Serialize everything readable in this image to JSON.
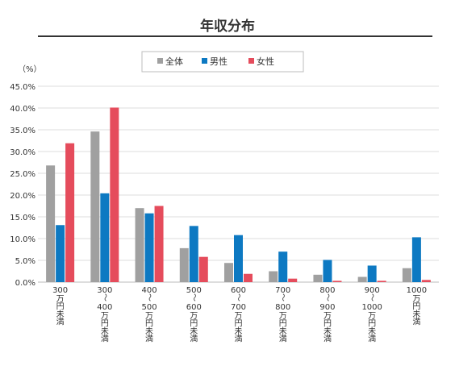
{
  "title": "年収分布",
  "chart_data": {
    "type": "bar",
    "ylabel": "（%）",
    "ylim": [
      0,
      45
    ],
    "yticks": [
      "0.0%",
      "5.0%",
      "10.0%",
      "15.0%",
      "20.0%",
      "25.0%",
      "30.0%",
      "35.0%",
      "40.0%",
      "45.0%"
    ],
    "grid": true,
    "legend_position": "top",
    "categories": [
      [
        "300",
        "万円未満"
      ],
      [
        "300",
        "～",
        "400",
        "万円未満"
      ],
      [
        "400",
        "～",
        "500",
        "万円未満"
      ],
      [
        "500",
        "～",
        "600",
        "万円未満"
      ],
      [
        "600",
        "～",
        "700",
        "万円未満"
      ],
      [
        "700",
        "～",
        "800",
        "万円未満"
      ],
      [
        "800",
        "～",
        "900",
        "万円未満"
      ],
      [
        "900",
        "～",
        "1000",
        "万円未満"
      ],
      [
        "1000",
        "万円未満"
      ]
    ],
    "series": [
      {
        "name": "全体",
        "color": "#a0a0a0",
        "values": [
          26.8,
          34.6,
          17.0,
          7.8,
          4.4,
          2.5,
          1.7,
          1.2,
          3.2
        ]
      },
      {
        "name": "男性",
        "color": "#0d79c2",
        "values": [
          13.1,
          20.4,
          15.8,
          12.9,
          10.8,
          7.0,
          5.1,
          3.8,
          10.3
        ]
      },
      {
        "name": "女性",
        "color": "#e54c5c",
        "values": [
          31.9,
          40.1,
          17.5,
          5.8,
          1.9,
          0.8,
          0.3,
          0.3,
          0.5
        ]
      }
    ]
  }
}
